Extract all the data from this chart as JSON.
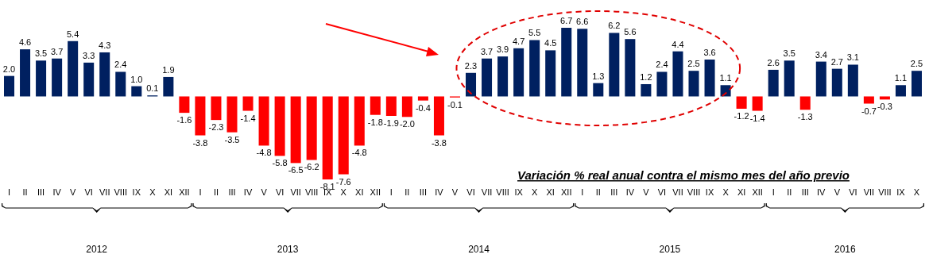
{
  "chart_data": {
    "type": "bar",
    "categories": [
      "I",
      "II",
      "III",
      "IV",
      "V",
      "VI",
      "VII",
      "VIII",
      "IX",
      "X",
      "XI",
      "XII",
      "I",
      "II",
      "III",
      "IV",
      "V",
      "VI",
      "VII",
      "VIII",
      "IX",
      "X",
      "XI",
      "XII",
      "I",
      "II",
      "III",
      "IV",
      "V",
      "VI",
      "VII",
      "VIII",
      "IX",
      "X",
      "XI",
      "XII",
      "I",
      "II",
      "III",
      "IV",
      "V",
      "VI",
      "VII",
      "VIII",
      "IX",
      "X",
      "XI",
      "XII",
      "I",
      "II",
      "III",
      "IV",
      "V",
      "VI",
      "VII",
      "VIII",
      "IX",
      "X"
    ],
    "values": [
      2.0,
      4.6,
      3.5,
      3.7,
      5.4,
      3.3,
      4.3,
      2.4,
      1.0,
      0.1,
      1.9,
      -1.6,
      -3.8,
      -2.3,
      -3.5,
      -1.4,
      -4.8,
      -5.8,
      -6.5,
      -6.2,
      -8.1,
      -7.6,
      -4.8,
      -1.8,
      -1.9,
      -2.0,
      -0.4,
      -3.8,
      -0.1,
      2.3,
      3.7,
      3.9,
      4.7,
      5.5,
      4.5,
      6.7,
      6.6,
      1.3,
      6.2,
      5.6,
      1.2,
      2.4,
      4.4,
      2.5,
      3.6,
      1.1,
      -1.2,
      -1.4,
      2.6,
      3.5,
      -1.3,
      3.4,
      2.7,
      3.1,
      -0.7,
      -0.3,
      1.1,
      2.5
    ],
    "colors": [
      "#002060",
      "#002060",
      "#002060",
      "#002060",
      "#002060",
      "#002060",
      "#002060",
      "#002060",
      "#002060",
      "#002060",
      "#002060",
      "#ff0000",
      "#ff0000",
      "#ff0000",
      "#ff0000",
      "#ff0000",
      "#ff0000",
      "#ff0000",
      "#ff0000",
      "#ff0000",
      "#ff0000",
      "#ff0000",
      "#ff0000",
      "#ff0000",
      "#ff0000",
      "#ff0000",
      "#ff0000",
      "#ff0000",
      "#ff0000",
      "#002060",
      "#002060",
      "#002060",
      "#002060",
      "#002060",
      "#002060",
      "#002060",
      "#002060",
      "#002060",
      "#002060",
      "#002060",
      "#002060",
      "#002060",
      "#002060",
      "#002060",
      "#002060",
      "#002060",
      "#ff0000",
      "#ff0000",
      "#002060",
      "#002060",
      "#ff0000",
      "#002060",
      "#002060",
      "#002060",
      "#ff0000",
      "#ff0000",
      "#002060",
      "#002060"
    ],
    "value_labels": [
      "2.0",
      "4.6",
      "3.5",
      "3.7",
      "5.4",
      "3.3",
      "4.3",
      "2.4",
      "1.0",
      "0.1",
      "1.9",
      "-1.6",
      "-3.8",
      "-2.3",
      "-3.5",
      "-1.4",
      "-4.8",
      "-5.8",
      "-6.5",
      "-6.2",
      "-8.1",
      "-7.6",
      "-4.8",
      "-1.8",
      "-1.9",
      "-2.0",
      "-0.4",
      "-3.8",
      "-0.1",
      "2.3",
      "3.7",
      "3.9",
      "4.7",
      "5.5",
      "4.5",
      "6.7",
      "6.6",
      "1.3",
      "6.2",
      "5.6",
      "1.2",
      "2.4",
      "4.4",
      "2.5",
      "3.6",
      "1.1",
      "-1.2",
      "-1.4",
      "2.6",
      "3.5",
      "-1.3",
      "3.4",
      "2.7",
      "3.1",
      "-0.7",
      "-0.3",
      "1.1",
      "2.5"
    ],
    "annotations": [
      "2012",
      "2013",
      "2014",
      "2015",
      "2016",
      "Variación % real anual contra el mismo mes del año previo"
    ]
  }
}
